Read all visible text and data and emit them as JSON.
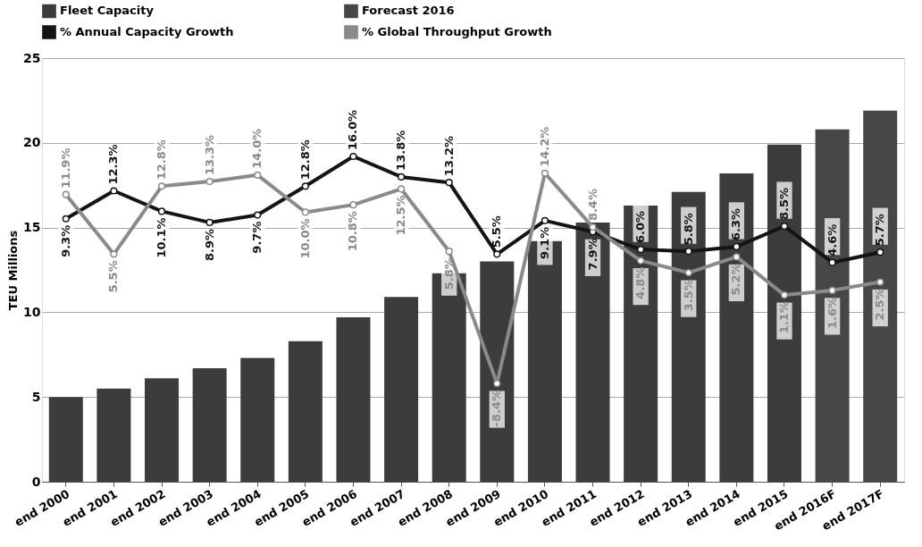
{
  "chart_data": {
    "type": "bar",
    "ylabel": "TEU Millions",
    "categories": [
      "end 2000",
      "end 2001",
      "end 2002",
      "end 2003",
      "end 2004",
      "end 2005",
      "end 2006",
      "end 2007",
      "end 2008",
      "end 2009",
      "end 2010",
      "end 2011",
      "end 2012",
      "end 2013",
      "end 2014",
      "end 2015",
      "end 2016F",
      "end 2017F"
    ],
    "series": [
      {
        "name": "Fleet Capacity",
        "color": "#3c3c3c",
        "values": [
          5.0,
          5.5,
          6.1,
          6.7,
          7.3,
          8.3,
          9.7,
          10.9,
          12.3,
          13.0,
          14.2,
          15.3,
          16.3,
          17.1,
          18.2,
          19.9,
          null,
          null
        ]
      },
      {
        "name": "Forecast 2016",
        "color": "#474747",
        "values": [
          null,
          null,
          null,
          null,
          null,
          null,
          null,
          null,
          null,
          null,
          null,
          null,
          null,
          null,
          null,
          null,
          20.8,
          21.9
        ]
      },
      {
        "name": "% Annual Capacity Growth",
        "type": "line",
        "axis": "y2",
        "color": "#141414",
        "values": [
          9.3,
          12.3,
          10.1,
          8.9,
          9.7,
          12.8,
          16.0,
          13.8,
          13.2,
          5.5,
          9.1,
          7.9,
          6.0,
          5.8,
          6.3,
          8.5,
          4.6,
          5.7
        ],
        "value_labels": [
          "9.3%",
          "12.3%",
          "10.1%",
          "8.9%",
          "9.7%",
          "12.8%",
          "16.0%",
          "13.8%",
          "13.2%",
          "5.5%",
          "9.1%",
          "7.9%",
          "6.0%",
          "5.8%",
          "6.3%",
          "8.5%",
          "4.6%",
          "5.7%"
        ]
      },
      {
        "name": "% Global Throughput Growth",
        "type": "line",
        "axis": "y2",
        "color": "#8a8a8a",
        "values": [
          11.9,
          5.5,
          12.8,
          13.3,
          14.0,
          10.0,
          10.8,
          12.5,
          5.8,
          -8.4,
          14.2,
          8.4,
          4.8,
          3.5,
          5.2,
          1.1,
          1.6,
          2.5
        ],
        "value_labels": [
          "11.9%",
          "5.5%",
          "12.8%",
          "13.3%",
          "14.0%",
          "10.0%",
          "10.8%",
          "12.5%",
          "5.8%",
          "-8.4%",
          "14.2%",
          "8.4%",
          "4.8%",
          "3.5%",
          "5.2%",
          "1.1%",
          "1.6%",
          "2.5%"
        ]
      }
    ],
    "ylim": [
      0,
      25
    ],
    "yticks": [
      0,
      5,
      10,
      15,
      20,
      25
    ],
    "grid": "y",
    "legend": "top",
    "marker": "circle",
    "tick_labels": "xy"
  }
}
